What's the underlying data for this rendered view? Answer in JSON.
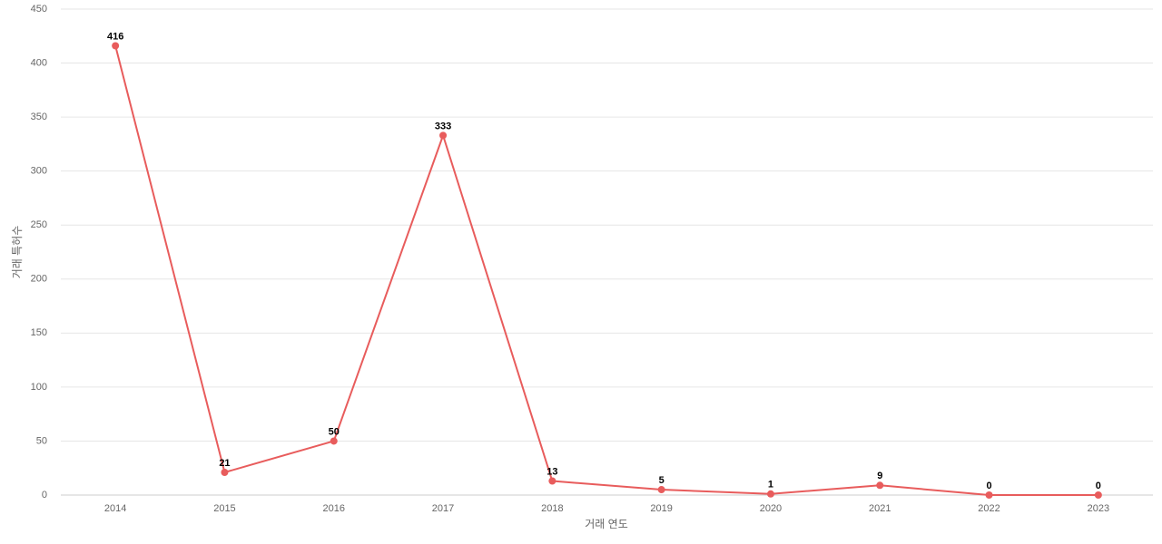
{
  "chart_data": {
    "type": "line",
    "categories": [
      "2014",
      "2015",
      "2016",
      "2017",
      "2018",
      "2019",
      "2020",
      "2021",
      "2022",
      "2023"
    ],
    "values": [
      416,
      21,
      50,
      333,
      13,
      5,
      1,
      9,
      0,
      0
    ],
    "color": "#e85c5c",
    "x_label": "거래 연도",
    "y_label": "거래 특허수",
    "ylim": [
      0,
      450
    ],
    "yticks": [
      0,
      50,
      100,
      150,
      200,
      250,
      300,
      350,
      400,
      450
    ],
    "grid": true
  }
}
